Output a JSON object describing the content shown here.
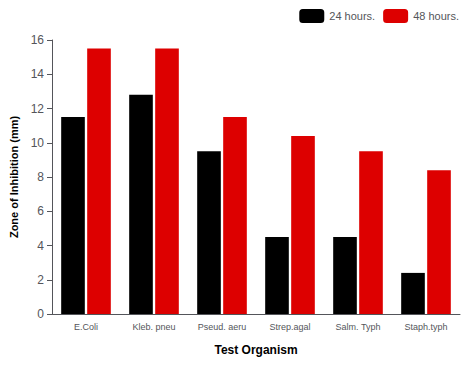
{
  "chart_data": {
    "type": "bar",
    "categories": [
      "E.Coli",
      "Kleb. pneu",
      "Pseud. aeru",
      "Strep.agal",
      "Salm. Typh",
      "Staph.typh"
    ],
    "series": [
      {
        "name": "24 hours.",
        "color": "#000000",
        "values": [
          11.5,
          12.8,
          9.5,
          4.5,
          4.5,
          2.4
        ]
      },
      {
        "name": "48 hours.",
        "color": "#dd0000",
        "values": [
          15.5,
          15.5,
          11.5,
          10.4,
          9.5,
          8.4
        ]
      }
    ],
    "xlabel": "Test Organism",
    "ylabel": "Zone of Inhibition (mm)",
    "ylim": [
      0,
      16
    ],
    "yticks": [
      0,
      2,
      4,
      6,
      8,
      10,
      12,
      14,
      16
    ],
    "grid": false,
    "legend": "upper right"
  }
}
